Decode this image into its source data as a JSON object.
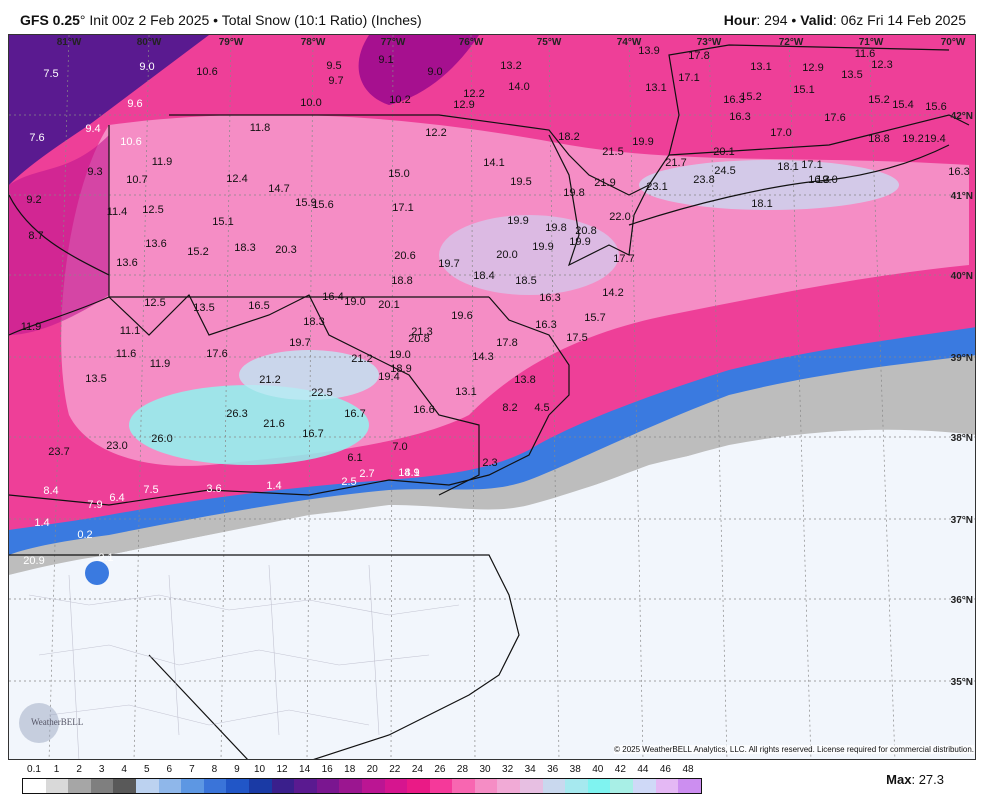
{
  "header": {
    "model": "GFS 0.25",
    "degree": "°",
    "description": "Init 00z 2 Feb 2025 • Total Snow (10:1 Ratio) (Inches)",
    "hour_label": "Hour",
    "hour_value": ": 294 • ",
    "valid_label": "Valid",
    "valid_value": ": 06z Fri 14 Feb 2025"
  },
  "lon_ticks": [
    "81°W",
    "80°W",
    "79°W",
    "78°W",
    "77°W",
    "76°W",
    "75°W",
    "74°W",
    "73°W",
    "72°W",
    "71°W",
    "70°W"
  ],
  "lat_ticks": [
    "42°N",
    "41°N",
    "40°N",
    "39°N",
    "38°N",
    "37°N",
    "36°N",
    "35°N"
  ],
  "snow_values": [
    "7.5",
    "9.0",
    "10.6",
    "9.5",
    "9.1",
    "9.0",
    "13.2",
    "13.9",
    "17.8",
    "11.6",
    "12.3",
    "9.7",
    "14.0",
    "17.1",
    "13.1",
    "13.1",
    "12.9",
    "13.5",
    "9.6",
    "10.0",
    "10.2",
    "12.2",
    "12.9",
    "16.3",
    "15.2",
    "15.1",
    "15.2",
    "15.4",
    "15.6",
    "16.3",
    "17.6",
    "9.4",
    "11.8",
    "12.2",
    "18.2",
    "17.0",
    "18.8",
    "19.2",
    "19.4",
    "10.6",
    "19.9",
    "7.6",
    "21.5",
    "20.1",
    "11.9",
    "14.1",
    "21.7",
    "9.3",
    "15.0",
    "18.1",
    "17.1",
    "16.3",
    "10.7",
    "12.4",
    "19.5",
    "23.1",
    "23.8",
    "24.5",
    "14.7",
    "19.8",
    "21.9",
    "19.0",
    "9.2",
    "15.9",
    "15.6",
    "17.1",
    "11.4",
    "12.5",
    "18.1",
    "22.0",
    "15.1",
    "19.9",
    "19.8",
    "20.8",
    "8.7",
    "13.6",
    "18.3",
    "20.3",
    "19.9",
    "19.9",
    "15.2",
    "20.6",
    "20.0",
    "13.6",
    "19.7",
    "17.7",
    "18.8",
    "18.4",
    "18.5",
    "16.4",
    "19.0",
    "16.3",
    "14.2",
    "12.5",
    "13.5",
    "16.5",
    "20.1",
    "11.9",
    "18.3",
    "19.6",
    "15.7",
    "11.1",
    "19.7",
    "21.3",
    "16.3",
    "20.8",
    "17.8",
    "17.5",
    "11.6",
    "21.2",
    "19.0",
    "14.3",
    "11.9",
    "17.6",
    "18.9",
    "13.5",
    "21.2",
    "19.4",
    "13.8",
    "22.5",
    "13.1",
    "26.3",
    "16.7",
    "8.2",
    "4.5",
    "16.6",
    "21.6",
    "23.7",
    "23.0",
    "26.0",
    "16.7",
    "7.0",
    "6.1",
    "2.7",
    "2.3",
    "14.1",
    "8.4",
    "7.5",
    "3.6",
    "1.4",
    "2.5",
    "8.9",
    "7.9",
    "6.4",
    "1.4",
    "0.2",
    "2.1",
    "20.9",
    "16.3"
  ],
  "copyright": "© 2025 WeatherBELL Analytics, LLC. All rights reserved. License required for commercial distribution.",
  "logo_text": "WeatherBELL",
  "legend": {
    "labels": [
      "0.1",
      "1",
      "2",
      "3",
      "4",
      "5",
      "6",
      "7",
      "8",
      "9",
      "10",
      "12",
      "14",
      "16",
      "18",
      "20",
      "22",
      "24",
      "26",
      "28",
      "30",
      "32",
      "34",
      "36",
      "38",
      "40",
      "42",
      "44",
      "46",
      "48"
    ],
    "colors": [
      "#ffffff",
      "#d9d9d9",
      "#a6a6a6",
      "#7f7f7f",
      "#595959",
      "#bcd2f0",
      "#8fb7ea",
      "#5d97e3",
      "#3a74d9",
      "#2156c7",
      "#1a3aa5",
      "#3a1f8c",
      "#5a1a90",
      "#7a1690",
      "#9b1690",
      "#bb1593",
      "#d6158f",
      "#ea1a86",
      "#f5399a",
      "#f866b1",
      "#f58dc5",
      "#f1aad6",
      "#e7bfe2",
      "#c9d8ee",
      "#a6e9ef",
      "#7ff3f0",
      "#a8efe6",
      "#cfd9f7",
      "#e4b8f4",
      "#cc8ef0"
    ]
  },
  "max_label": "Max",
  "max_value": ": 27.3"
}
